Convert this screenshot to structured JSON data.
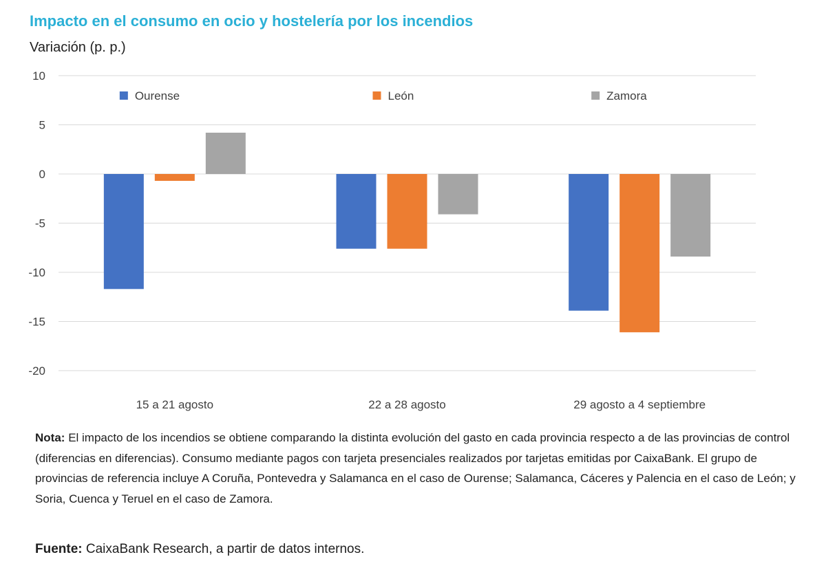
{
  "note": {
    "label": "Nota:",
    "text": "El impacto de los incendios se obtiene comparando la distinta evolución del gasto en cada provincia respecto a de las provincias de control (diferencias en diferencias). Consumo mediante pagos con tarjeta presenciales realizados por tarjetas emitidas por CaixaBank. El grupo de provincias de referencia incluye A Coruña, Pontevedra y Salamanca en el caso de Ourense; Salamanca, Cáceres y Palencia en el caso de León; y Soria, Cuenca y Teruel en el caso de Zamora."
  },
  "source": {
    "label": "Fuente:",
    "text": "CaixaBank Research, a partir de datos internos."
  },
  "chart_data": {
    "type": "bar",
    "title": "Impacto en el consumo en ocio y hostelería por los incendios",
    "ylabel": "Variación (p. p.)",
    "xlabel": "",
    "ylim": [
      -20,
      10
    ],
    "yticks": [
      10,
      5,
      0,
      -5,
      -10,
      -15,
      -20
    ],
    "grid": true,
    "legend_position": "top",
    "categories": [
      "15 a 21 agosto",
      "22 a 28 agosto",
      "29 agosto a 4 septiembre"
    ],
    "series": [
      {
        "name": "Ourense",
        "color": "#4472c4",
        "values": [
          -11.7,
          -7.6,
          -13.9
        ]
      },
      {
        "name": "León",
        "color": "#ed7d31",
        "values": [
          -0.7,
          -7.6,
          -16.1
        ]
      },
      {
        "name": "Zamora",
        "color": "#a5a5a5",
        "values": [
          4.2,
          -4.1,
          -8.4
        ]
      }
    ]
  }
}
